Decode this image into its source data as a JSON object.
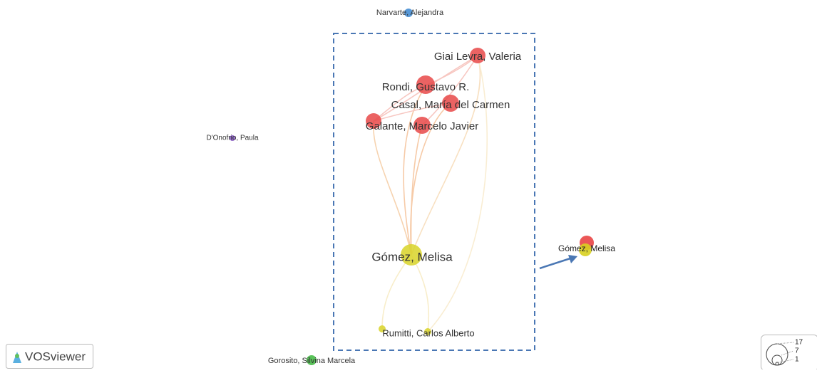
{
  "nodes": [
    {
      "label": "Narvarte, Alejandra"
    },
    {
      "label": "Giai Levra, Valeria"
    },
    {
      "label": "Rondi, Gustavo R."
    },
    {
      "label": "Casal, María del Carmen"
    },
    {
      "label": "Galante, Marcelo Javier"
    },
    {
      "label": "D'Onofrio, Paula"
    },
    {
      "label": "Gómez, Melisa"
    },
    {
      "label": "Rumitti, Carlos Alberto"
    },
    {
      "label": "Gorosito, Silvina Marcela"
    }
  ],
  "callout": {
    "label": "Gómez, Melisa"
  },
  "legend": {
    "values": [
      17,
      7,
      1
    ]
  },
  "logo": "VOSviewer"
}
